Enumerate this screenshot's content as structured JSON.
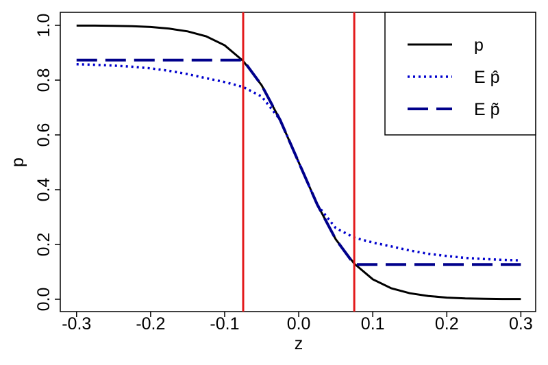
{
  "chart_data": {
    "type": "line",
    "xlabel": "z",
    "ylabel": "p",
    "x": [
      -0.3,
      -0.275,
      -0.25,
      -0.225,
      -0.2,
      -0.175,
      -0.15,
      -0.125,
      -0.1,
      -0.075,
      -0.05,
      -0.025,
      0,
      0.025,
      0.05,
      0.075,
      0.1,
      0.125,
      0.15,
      0.175,
      0.2,
      0.225,
      0.25,
      0.275,
      0.3
    ],
    "series": [
      {
        "name": "p",
        "color": "#000000",
        "style": "solid",
        "values": [
          0.999,
          0.999,
          0.998,
          0.997,
          0.994,
          0.988,
          0.978,
          0.96,
          0.927,
          0.87,
          0.781,
          0.654,
          0.5,
          0.346,
          0.219,
          0.13,
          0.073,
          0.04,
          0.022,
          0.012,
          0.006,
          0.003,
          0.002,
          0.001,
          0.001
        ]
      },
      {
        "name": "E p̂",
        "color": "#0000cd",
        "style": "dotted",
        "values": [
          0.858,
          0.856,
          0.853,
          0.849,
          0.843,
          0.834,
          0.822,
          0.807,
          0.793,
          0.775,
          0.74,
          0.655,
          0.5,
          0.345,
          0.26,
          0.225,
          0.207,
          0.193,
          0.178,
          0.166,
          0.158,
          0.151,
          0.147,
          0.144,
          0.142
        ]
      },
      {
        "name": "E p̃",
        "color": "#00008b",
        "style": "dashed",
        "values": [
          0.873,
          0.873,
          0.873,
          0.873,
          0.873,
          0.873,
          0.873,
          0.873,
          0.873,
          0.873,
          0.781,
          0.654,
          0.5,
          0.346,
          0.219,
          0.127,
          0.127,
          0.127,
          0.127,
          0.127,
          0.127,
          0.127,
          0.127,
          0.127,
          0.127
        ]
      }
    ],
    "vlines": [
      -0.075,
      0.075
    ],
    "vline_color": "#e31a1c",
    "xlim": [
      -0.322,
      0.32
    ],
    "xticks": [
      -0.3,
      -0.2,
      -0.1,
      {
        "value": 0,
        "label": "0.0"
      },
      0.1,
      0.2,
      0.3
    ],
    "ylim": [
      -0.045,
      1.0475
    ],
    "yticks": [
      {
        "value": 0,
        "label": "0.0"
      },
      0.2,
      0.4,
      0.6,
      0.8,
      {
        "value": 1,
        "label": "1.0"
      }
    ],
    "legend": "top-right"
  }
}
